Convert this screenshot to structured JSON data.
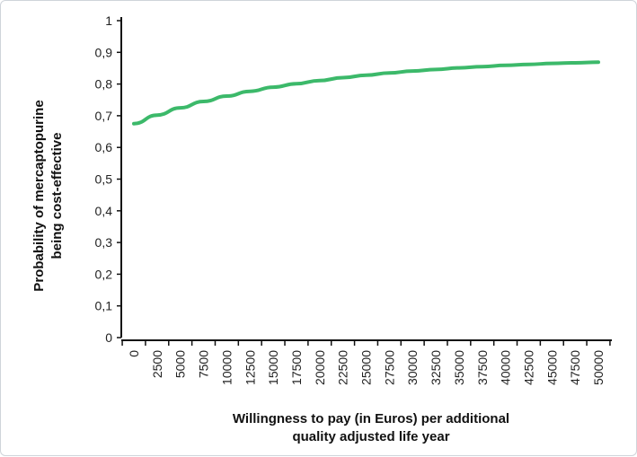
{
  "chart_data": {
    "type": "line",
    "xlabel_lines": [
      "Willingness to pay (in Euros) per additional",
      "quality adjusted life year"
    ],
    "ylabel_lines": [
      "Probability of mercaptopurine",
      "being cost-effective"
    ],
    "x_ticks": [
      "0",
      "2500",
      "5000",
      "7500",
      "10000",
      "12500",
      "15000",
      "17500",
      "20000",
      "22500",
      "25000",
      "27500",
      "30000",
      "32500",
      "35000",
      "37500",
      "40000",
      "42500",
      "45000",
      "47500",
      "50000"
    ],
    "y_ticks": [
      "0",
      "0,1",
      "0,2",
      "0,3",
      "0,4",
      "0,5",
      "0,6",
      "0,7",
      "0,8",
      "0,9",
      "1"
    ],
    "ylim": [
      0,
      1
    ],
    "xlim": [
      0,
      50000
    ],
    "series": [
      {
        "color": "#3cb96a",
        "x": [
          0,
          2500,
          5000,
          7500,
          10000,
          12500,
          15000,
          17500,
          20000,
          22500,
          25000,
          27500,
          30000,
          32500,
          35000,
          37500,
          40000,
          42500,
          45000,
          47500,
          50000
        ],
        "y": [
          0.675,
          0.702,
          0.725,
          0.745,
          0.762,
          0.777,
          0.79,
          0.801,
          0.811,
          0.82,
          0.828,
          0.835,
          0.841,
          0.846,
          0.851,
          0.855,
          0.859,
          0.862,
          0.865,
          0.867,
          0.869
        ]
      }
    ],
    "grid": false
  }
}
